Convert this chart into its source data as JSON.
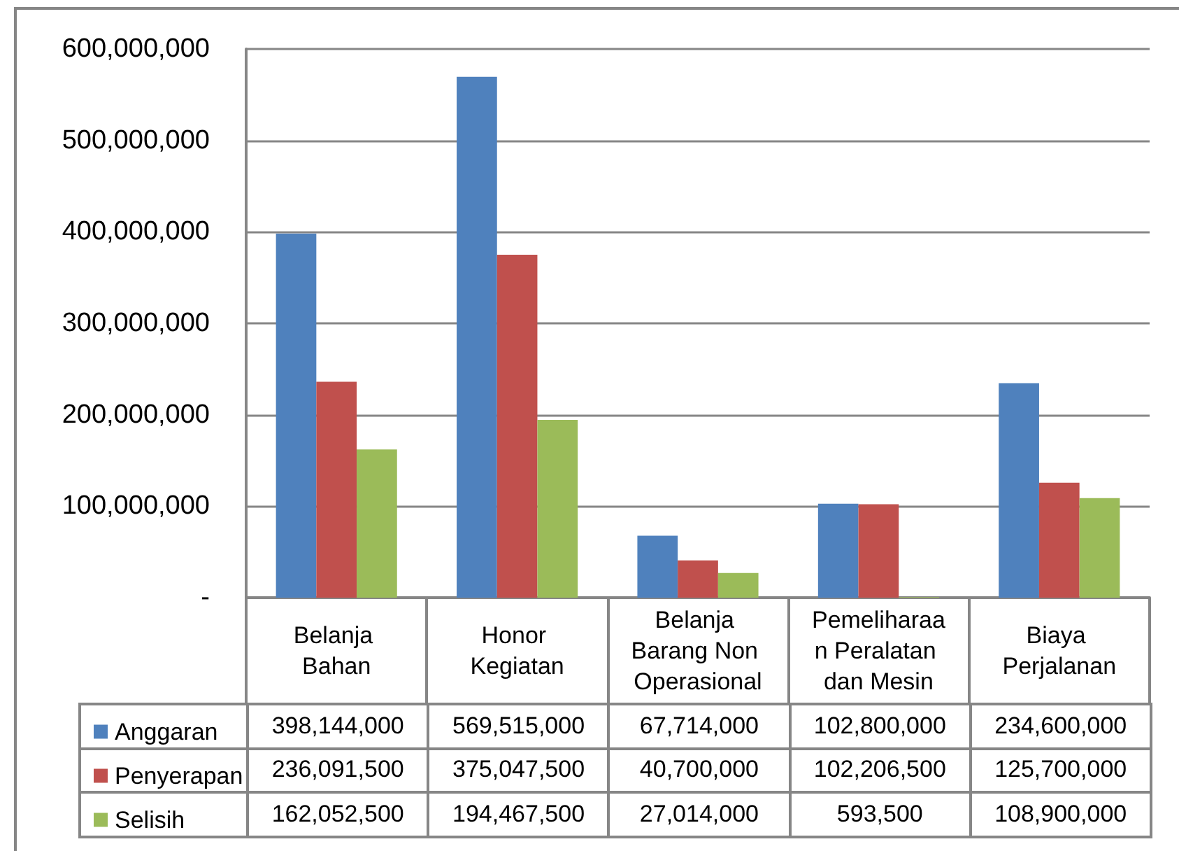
{
  "chart_data": {
    "type": "bar",
    "categories": [
      "Belanja Bahan",
      "Honor Kegiatan",
      "Belanja Barang Non Operasional",
      "Pemeliharaan Peralatan dan Mesin",
      "Biaya Perjalanan"
    ],
    "series": [
      {
        "name": "Anggaran",
        "color": "#4f81bd",
        "values": [
          398144000,
          569515000,
          67714000,
          102800000,
          234600000
        ],
        "value_labels": [
          "398,144,000",
          "569,515,000",
          "67,714,000",
          "102,800,000",
          "234,600,000"
        ]
      },
      {
        "name": "Penyerapan",
        "color": "#c0504d",
        "values": [
          236091500,
          375047500,
          40700000,
          102206500,
          125700000
        ],
        "value_labels": [
          "236,091,500",
          "375,047,500",
          "40,700,000",
          "102,206,500",
          "125,700,000"
        ]
      },
      {
        "name": "Selisih",
        "color": "#9bbb59",
        "values": [
          162052500,
          194467500,
          27014000,
          593500,
          108900000
        ],
        "value_labels": [
          "162,052,500",
          "194,467,500",
          "27,014,000",
          "593,500",
          "108,900,000"
        ]
      }
    ],
    "ylim": [
      0,
      600000000
    ],
    "yticks": [
      {
        "value": 0,
        "label": "-"
      },
      {
        "value": 100000000,
        "label": "100,000,000"
      },
      {
        "value": 200000000,
        "label": "200,000,000"
      },
      {
        "value": 300000000,
        "label": "300,000,000"
      },
      {
        "value": 400000000,
        "label": "400,000,000"
      },
      {
        "value": 500000000,
        "label": "500,000,000"
      },
      {
        "value": 600000000,
        "label": "600,000,000"
      }
    ],
    "grid": "y",
    "legend": "bottom left"
  }
}
